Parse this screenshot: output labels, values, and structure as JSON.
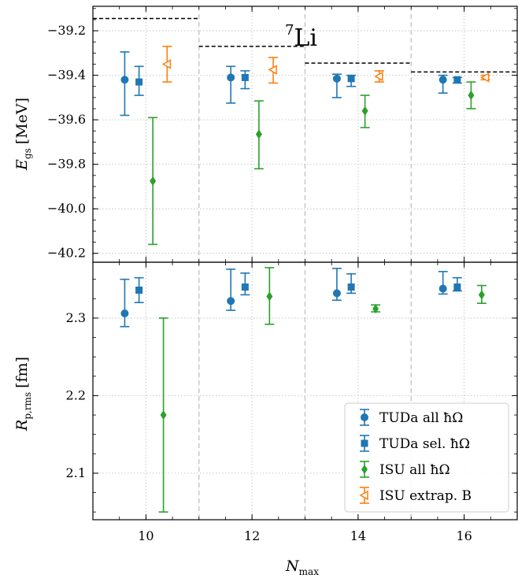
{
  "chart_data": [
    {
      "type": "scatter",
      "panel": "top",
      "title": "Li",
      "title_superscript": "7",
      "ylabel_main": "E",
      "ylabel_sub": "gs",
      "ylabel_unit": "[MeV]",
      "ylim": [
        -40.24,
        -39.09
      ],
      "yticks": [
        -39.2,
        -39.4,
        -39.6,
        -39.8,
        -40.0,
        -40.2
      ],
      "ytick_labels": [
        "−39.2",
        "−39.4",
        "−39.6",
        "−39.8",
        "−40.0",
        "−40.2"
      ],
      "grid": true,
      "reference_lines": [
        {
          "x_start": 9,
          "x_end": 11,
          "y": -39.145
        },
        {
          "x_start": 11,
          "x_end": 13,
          "y": -39.27
        },
        {
          "x_start": 13,
          "x_end": 15,
          "y": -39.345
        },
        {
          "x_start": 15,
          "x_end": 17,
          "y": -39.385
        }
      ],
      "series": [
        {
          "name": "TUDa all ħΩ",
          "color": "#1f77b4",
          "marker": "circle",
          "points": [
            {
              "x": 9.6,
              "y": -39.42,
              "lo": -39.58,
              "hi": -39.295
            },
            {
              "x": 11.6,
              "y": -39.41,
              "lo": -39.525,
              "hi": -39.36
            },
            {
              "x": 13.6,
              "y": -39.415,
              "lo": -39.5,
              "hi": -39.395
            },
            {
              "x": 15.6,
              "y": -39.42,
              "lo": -39.48,
              "hi": -39.4
            }
          ]
        },
        {
          "name": "TUDa sel. ħΩ",
          "color": "#1f77b4",
          "marker": "square",
          "points": [
            {
              "x": 9.87,
              "y": -39.43,
              "lo": -39.49,
              "hi": -39.36
            },
            {
              "x": 11.87,
              "y": -39.41,
              "lo": -39.46,
              "hi": -39.38
            },
            {
              "x": 13.87,
              "y": -39.415,
              "lo": -39.45,
              "hi": -39.4
            },
            {
              "x": 15.87,
              "y": -39.42,
              "lo": -39.435,
              "hi": -39.41
            }
          ]
        },
        {
          "name": "ISU all ħΩ",
          "color": "#2ca02c",
          "marker": "diamond",
          "points": [
            {
              "x": 10.13,
              "y": -39.875,
              "lo": -40.16,
              "hi": -39.59
            },
            {
              "x": 12.13,
              "y": -39.665,
              "lo": -39.82,
              "hi": -39.515
            },
            {
              "x": 14.13,
              "y": -39.56,
              "lo": -39.635,
              "hi": -39.49
            },
            {
              "x": 16.13,
              "y": -39.49,
              "lo": -39.55,
              "hi": -39.43
            }
          ]
        },
        {
          "name": "ISU extrap. B",
          "color": "#ff7f0e",
          "marker": "triangle-left-open",
          "points": [
            {
              "x": 10.4,
              "y": -39.35,
              "lo": -39.43,
              "hi": -39.27
            },
            {
              "x": 12.4,
              "y": -39.375,
              "lo": -39.435,
              "hi": -39.32
            },
            {
              "x": 14.4,
              "y": -39.405,
              "lo": -39.43,
              "hi": -39.38
            },
            {
              "x": 16.4,
              "y": -39.41,
              "lo": -39.42,
              "hi": -39.4
            }
          ]
        }
      ]
    },
    {
      "type": "scatter",
      "panel": "bottom",
      "xlabel_main": "N",
      "xlabel_sub": "max",
      "ylabel_main": "R",
      "ylabel_sub": "p,rms",
      "ylabel_unit": "[fm]",
      "xlim": [
        9,
        17
      ],
      "ylim": [
        2.04,
        2.372
      ],
      "xticks": [
        10,
        12,
        14,
        16
      ],
      "xtick_labels": [
        "10",
        "12",
        "14",
        "16"
      ],
      "yticks": [
        2.1,
        2.2,
        2.3
      ],
      "ytick_labels": [
        "2.1",
        "2.2",
        "2.3"
      ],
      "grid": true,
      "group_separators": [
        11,
        13,
        15
      ],
      "legend_position": "lower-right",
      "series": [
        {
          "name": "TUDa all ħΩ",
          "color": "#1f77b4",
          "marker": "circle",
          "points": [
            {
              "x": 9.6,
              "y": 2.306,
              "lo": 2.289,
              "hi": 2.35
            },
            {
              "x": 11.6,
              "y": 2.322,
              "lo": 2.31,
              "hi": 2.363
            },
            {
              "x": 13.6,
              "y": 2.332,
              "lo": 2.323,
              "hi": 2.364
            },
            {
              "x": 15.6,
              "y": 2.338,
              "lo": 2.331,
              "hi": 2.36
            }
          ]
        },
        {
          "name": "TUDa sel. ħΩ",
          "color": "#1f77b4",
          "marker": "square",
          "points": [
            {
              "x": 9.87,
              "y": 2.336,
              "lo": 2.32,
              "hi": 2.352
            },
            {
              "x": 11.87,
              "y": 2.34,
              "lo": 2.33,
              "hi": 2.358
            },
            {
              "x": 13.87,
              "y": 2.34,
              "lo": 2.332,
              "hi": 2.357
            },
            {
              "x": 15.87,
              "y": 2.34,
              "lo": 2.335,
              "hi": 2.352
            }
          ]
        },
        {
          "name": "ISU all ħΩ",
          "color": "#2ca02c",
          "marker": "diamond",
          "points": [
            {
              "x": 10.33,
              "y": 2.175,
              "lo": 2.05,
              "hi": 2.3
            },
            {
              "x": 12.33,
              "y": 2.328,
              "lo": 2.292,
              "hi": 2.365
            },
            {
              "x": 14.33,
              "y": 2.312,
              "lo": 2.308,
              "hi": 2.317
            },
            {
              "x": 16.33,
              "y": 2.33,
              "lo": 2.319,
              "hi": 2.342
            }
          ]
        }
      ]
    }
  ],
  "legend": [
    {
      "name": "TUDa all ħΩ",
      "color": "#1f77b4",
      "marker": "circle"
    },
    {
      "name": "TUDa sel. ħΩ",
      "color": "#1f77b4",
      "marker": "square"
    },
    {
      "name": "ISU all ħΩ",
      "color": "#2ca02c",
      "marker": "diamond"
    },
    {
      "name": "ISU extrap. B",
      "color": "#ff7f0e",
      "marker": "triangle-left-open"
    }
  ]
}
